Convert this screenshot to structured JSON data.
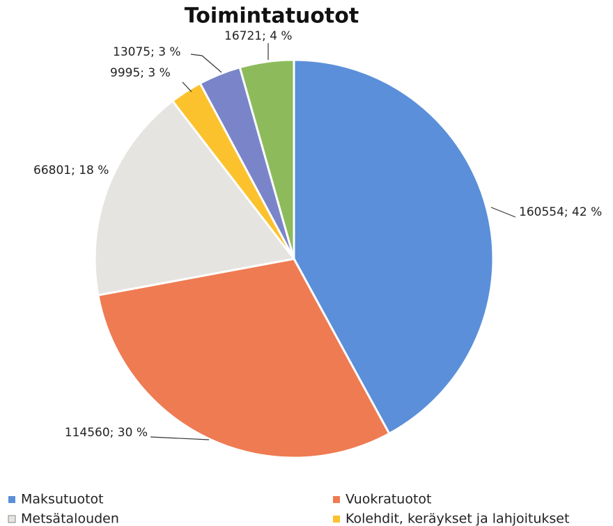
{
  "chart_data": {
    "type": "pie",
    "title": "Toimintatuotot",
    "categories": [
      "Maksutuotot",
      "Vuokratuotot",
      "Metsätalouden",
      "Kolehdit, keräykset ja lahjoitukset",
      null,
      null
    ],
    "values": [
      160554,
      114560,
      66801,
      9995,
      13075,
      16721
    ],
    "value_labels": [
      "160554; 42 %",
      "114560; 30 %",
      "66801; 18 %",
      "9995; 3 %",
      "13075; 3 %",
      "16721; 4 %"
    ],
    "colors": [
      "#5b8fd9",
      "#ef7b52",
      "#e6e4e0",
      "#fcc22d",
      "#7a85c9",
      "#8dbb5c"
    ]
  }
}
